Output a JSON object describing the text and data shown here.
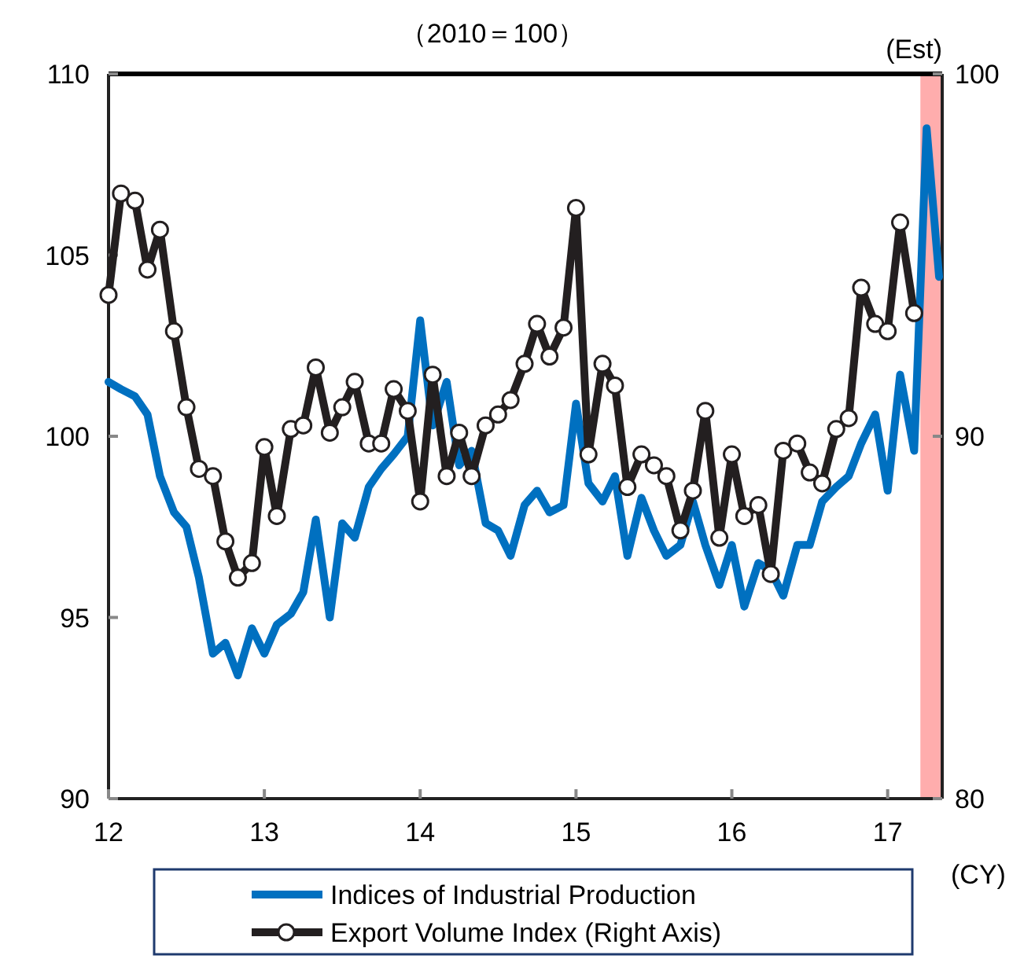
{
  "chart_data": {
    "type": "line",
    "title": "（2010＝100）",
    "xlabel": "(CY)",
    "legend": "bottom",
    "marker": "none",
    "line_style": "solid",
    "grid": false,
    "xlim": [
      12,
      17.35
    ],
    "xticks": [
      12,
      13,
      14,
      15,
      16,
      17
    ],
    "ylim": [
      90,
      110
    ],
    "yticks": [
      90,
      95,
      100,
      105,
      110
    ],
    "y2lim": [
      80,
      100
    ],
    "y2ticks": [
      80,
      90,
      100
    ],
    "bands": [
      {
        "axis": "x",
        "from": 17.21,
        "to": 17.35,
        "label": "(Est)",
        "color": "#ffadad"
      }
    ],
    "series": [
      {
        "name": "Indices of Industrial Production",
        "color": "#0070c0",
        "x": [
          12,
          12.08,
          12.17,
          12.25,
          12.33,
          12.42,
          12.5,
          12.58,
          12.67,
          12.75,
          12.83,
          12.92,
          13,
          13.08,
          13.17,
          13.25,
          13.33,
          13.42,
          13.5,
          13.58,
          13.67,
          13.75,
          13.83,
          13.92,
          14,
          14.08,
          14.17,
          14.25,
          14.33,
          14.42,
          14.5,
          14.58,
          14.67,
          14.75,
          14.83,
          14.92,
          15,
          15.08,
          15.17,
          15.25,
          15.33,
          15.42,
          15.5,
          15.58,
          15.67,
          15.75,
          15.83,
          15.92,
          16,
          16.08,
          16.17,
          16.25,
          16.33,
          16.42,
          16.5,
          16.58,
          16.67,
          16.75,
          16.83,
          16.92,
          17,
          17.08,
          17.17,
          17.25,
          17.33
        ],
        "values": [
          101.5,
          101.3,
          101.1,
          100.6,
          98.9,
          97.9,
          97.5,
          96.1,
          94.0,
          94.3,
          93.4,
          94.7,
          94.0,
          94.8,
          95.1,
          95.7,
          97.7,
          95.0,
          97.6,
          97.2,
          98.6,
          99.1,
          99.5,
          100.0,
          103.2,
          100.3,
          101.5,
          99.2,
          99.6,
          97.6,
          97.4,
          96.7,
          98.1,
          98.5,
          97.9,
          98.1,
          100.9,
          98.7,
          98.2,
          98.9,
          96.7,
          98.3,
          97.4,
          96.7,
          97.0,
          98.2,
          97.0,
          95.9,
          97.0,
          95.3,
          96.5,
          96.3,
          95.6,
          97.0,
          97.0,
          98.2,
          98.6,
          98.9,
          99.8,
          100.6,
          98.5,
          101.7,
          99.6,
          108.5,
          104.4
        ]
      },
      {
        "name": "Export Volume Index (Right Axis)",
        "color": "#231f20",
        "axis": "y2",
        "marker": "circle",
        "x": [
          12,
          12.08,
          12.17,
          12.25,
          12.33,
          12.42,
          12.5,
          12.58,
          12.67,
          12.75,
          12.83,
          12.92,
          13,
          13.08,
          13.17,
          13.25,
          13.33,
          13.42,
          13.5,
          13.58,
          13.67,
          13.75,
          13.83,
          13.92,
          14,
          14.08,
          14.17,
          14.25,
          14.33,
          14.42,
          14.5,
          14.58,
          14.67,
          14.75,
          14.83,
          14.92,
          15,
          15.08,
          15.17,
          15.25,
          15.33,
          15.42,
          15.5,
          15.58,
          15.67,
          15.75,
          15.83,
          15.92,
          16,
          16.08,
          16.17,
          16.25,
          16.33,
          16.42,
          16.5,
          16.58,
          16.67,
          16.75,
          16.83,
          16.92,
          17,
          17.08,
          17.17
        ],
        "values": [
          93.9,
          96.7,
          96.5,
          94.6,
          95.7,
          92.9,
          90.8,
          89.1,
          88.9,
          87.1,
          86.1,
          86.5,
          89.7,
          87.8,
          90.2,
          90.3,
          91.9,
          90.1,
          90.8,
          91.5,
          89.8,
          89.8,
          91.3,
          90.7,
          88.2,
          91.7,
          88.9,
          90.1,
          88.9,
          90.3,
          90.6,
          91.0,
          92.0,
          93.1,
          92.2,
          93.0,
          96.3,
          89.5,
          92.0,
          91.4,
          88.6,
          89.5,
          89.2,
          88.9,
          87.4,
          88.5,
          90.7,
          87.2,
          89.5,
          87.8,
          88.1,
          86.2,
          89.6,
          89.8,
          89.0,
          88.7,
          90.2,
          90.5,
          94.1,
          93.1,
          92.9,
          95.9,
          93.4
        ]
      }
    ]
  }
}
